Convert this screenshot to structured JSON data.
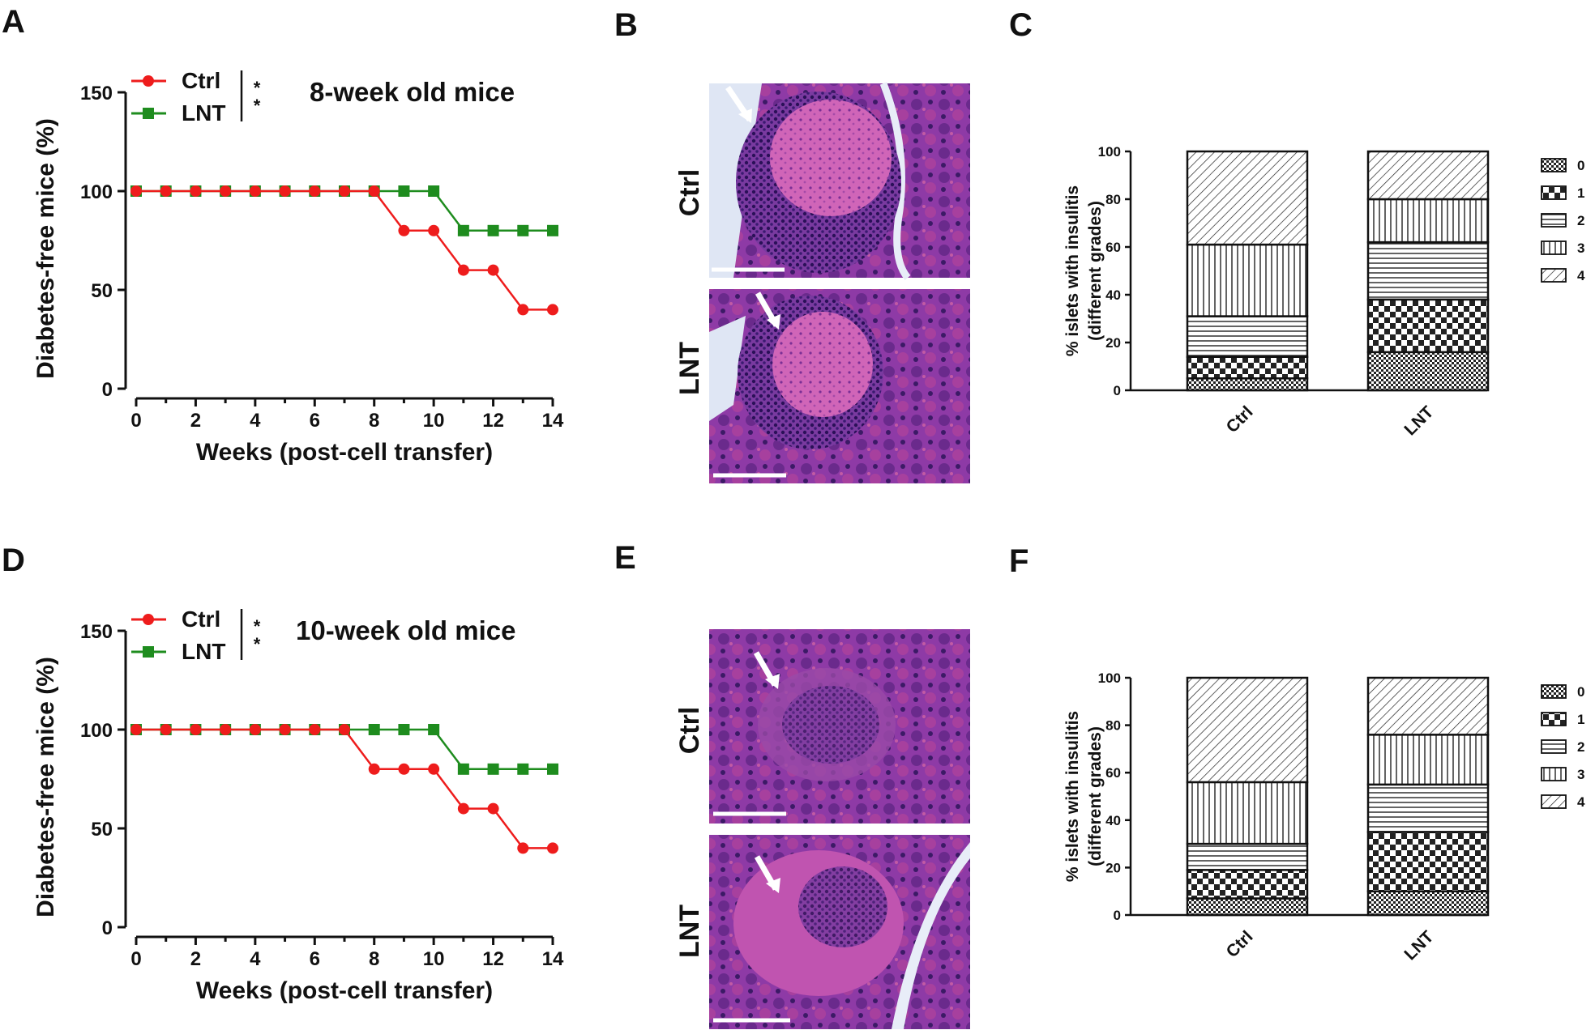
{
  "panel_labels": [
    "A",
    "B",
    "C",
    "D",
    "E",
    "F"
  ],
  "colors": {
    "ctrl": "#ee1c1c",
    "lnt": "#1e8c1e",
    "axis": "#111111"
  },
  "chart_data": [
    {
      "panel": "A",
      "type": "line",
      "title": "8-week old mice",
      "xlabel": "Weeks (post-cell transfer)",
      "ylabel": "Diabetes-free mice (%)",
      "xlim": [
        0,
        14
      ],
      "ylim": [
        0,
        150
      ],
      "xticks": [
        "0",
        "2",
        "4",
        "6",
        "8",
        "10",
        "12",
        "14"
      ],
      "yticks": [
        "0",
        "50",
        "100",
        "150"
      ],
      "significance": [
        "*",
        "*"
      ],
      "series": [
        {
          "name": "Ctrl",
          "marker": "circle",
          "x": [
            0,
            1,
            2,
            3,
            4,
            5,
            6,
            7,
            8,
            9,
            10,
            11,
            12,
            13,
            14
          ],
          "y": [
            100,
            100,
            100,
            100,
            100,
            100,
            100,
            100,
            100,
            80,
            80,
            60,
            60,
            40,
            40
          ]
        },
        {
          "name": "LNT",
          "marker": "square",
          "x": [
            0,
            1,
            2,
            3,
            4,
            5,
            6,
            7,
            8,
            9,
            10,
            11,
            12,
            13,
            14
          ],
          "y": [
            100,
            100,
            100,
            100,
            100,
            100,
            100,
            100,
            100,
            100,
            100,
            80,
            80,
            80,
            80
          ]
        }
      ]
    },
    {
      "panel": "D",
      "type": "line",
      "title": "10-week old mice",
      "xlabel": "Weeks (post-cell transfer)",
      "ylabel": "Diabetes-free mice (%)",
      "xlim": [
        0,
        14
      ],
      "ylim": [
        0,
        150
      ],
      "xticks": [
        "0",
        "2",
        "4",
        "6",
        "8",
        "10",
        "12",
        "14"
      ],
      "yticks": [
        "0",
        "50",
        "100",
        "150"
      ],
      "significance": [
        "*",
        "*"
      ],
      "series": [
        {
          "name": "Ctrl",
          "marker": "circle",
          "x": [
            0,
            1,
            2,
            3,
            4,
            5,
            6,
            7,
            8,
            9,
            10,
            11,
            12,
            13,
            14
          ],
          "y": [
            100,
            100,
            100,
            100,
            100,
            100,
            100,
            100,
            80,
            80,
            80,
            60,
            60,
            40,
            40
          ]
        },
        {
          "name": "LNT",
          "marker": "square",
          "x": [
            0,
            1,
            2,
            3,
            4,
            5,
            6,
            7,
            8,
            9,
            10,
            11,
            12,
            13,
            14
          ],
          "y": [
            100,
            100,
            100,
            100,
            100,
            100,
            100,
            100,
            100,
            100,
            100,
            80,
            80,
            80,
            80
          ]
        }
      ]
    },
    {
      "panel": "C",
      "type": "bar",
      "stacked": true,
      "ylabel_lines": [
        "% islets with insulitis",
        "(different grades)"
      ],
      "categories": [
        "Ctrl",
        "LNT"
      ],
      "ylim": [
        0,
        100
      ],
      "yticks": [
        "0",
        "20",
        "40",
        "60",
        "80",
        "100"
      ],
      "series": [
        {
          "name": "0",
          "values": [
            5,
            16
          ]
        },
        {
          "name": "1",
          "values": [
            9,
            22
          ]
        },
        {
          "name": "2",
          "values": [
            17,
            24
          ]
        },
        {
          "name": "3",
          "values": [
            30,
            18
          ]
        },
        {
          "name": "4",
          "values": [
            39,
            20
          ]
        }
      ]
    },
    {
      "panel": "F",
      "type": "bar",
      "stacked": true,
      "ylabel_lines": [
        "% islets with insulitis",
        "(different grades)"
      ],
      "categories": [
        "Ctrl",
        "LNT"
      ],
      "ylim": [
        0,
        100
      ],
      "yticks": [
        "0",
        "20",
        "40",
        "60",
        "80",
        "100"
      ],
      "series": [
        {
          "name": "0",
          "values": [
            7,
            10
          ]
        },
        {
          "name": "1",
          "values": [
            12,
            25
          ]
        },
        {
          "name": "2",
          "values": [
            11,
            20
          ]
        },
        {
          "name": "3",
          "values": [
            26,
            21
          ]
        },
        {
          "name": "4",
          "values": [
            44,
            24
          ]
        }
      ]
    }
  ],
  "histology": [
    {
      "panel": "B",
      "images": [
        {
          "label": "Ctrl"
        },
        {
          "label": "LNT"
        }
      ]
    },
    {
      "panel": "E",
      "images": [
        {
          "label": "Ctrl"
        },
        {
          "label": "LNT"
        }
      ]
    }
  ]
}
